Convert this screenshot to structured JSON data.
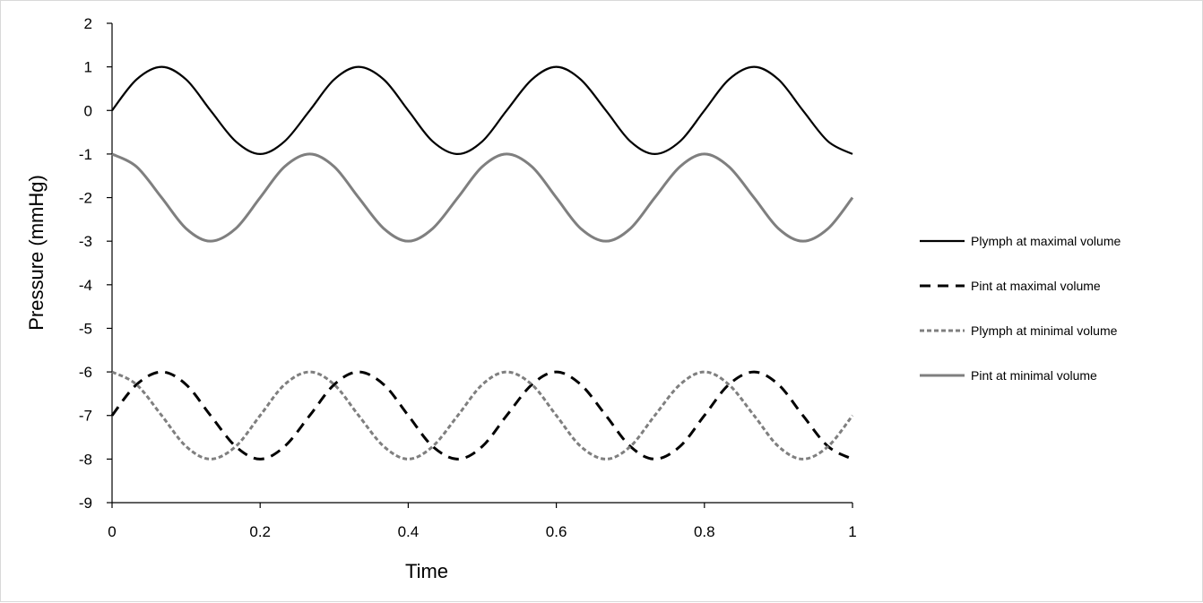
{
  "chart_data": {
    "type": "line",
    "title": "",
    "xlabel": "Time",
    "ylabel": "Pressure (mmHg)",
    "xlim": [
      0,
      1
    ],
    "ylim": [
      -9,
      2
    ],
    "xticks": [
      "0",
      "0.2",
      "0.4",
      "0.6",
      "0.8",
      "1"
    ],
    "yticks": [
      "2",
      "1",
      "0",
      "-1",
      "-2",
      "-3",
      "-4",
      "-5",
      "-6",
      "-7",
      "-8",
      "-9"
    ],
    "grid": false,
    "legend_position": "right",
    "series": [
      {
        "name": "Plymph at maximal volume",
        "color": "#000000",
        "line_style": "solid",
        "x": [
          0,
          0.033,
          0.067,
          0.1,
          0.133,
          0.167,
          0.2,
          0.233,
          0.267,
          0.3,
          0.333,
          0.367,
          0.4,
          0.433,
          0.467,
          0.5,
          0.533,
          0.567,
          0.6,
          0.633,
          0.667,
          0.7,
          0.733,
          0.767,
          0.8,
          0.833,
          0.867,
          0.9,
          0.933,
          0.967,
          1
        ],
        "values": [
          0,
          0.71,
          1,
          0.71,
          0,
          -0.71,
          -1,
          -0.71,
          0,
          0.71,
          1,
          0.71,
          0,
          -0.71,
          -1,
          -0.71,
          0,
          0.71,
          1,
          0.71,
          0,
          -0.71,
          -1,
          -0.71,
          0,
          0.71,
          1,
          0.71,
          0,
          -0.71,
          -1
        ]
      },
      {
        "name": "Pint at maximal volume",
        "color": "#000000",
        "line_style": "dashed",
        "x": [
          0,
          0.033,
          0.067,
          0.1,
          0.133,
          0.167,
          0.2,
          0.233,
          0.267,
          0.3,
          0.333,
          0.367,
          0.4,
          0.433,
          0.467,
          0.5,
          0.533,
          0.567,
          0.6,
          0.633,
          0.667,
          0.7,
          0.733,
          0.767,
          0.8,
          0.833,
          0.867,
          0.9,
          0.933,
          0.967,
          1
        ],
        "values": [
          -7,
          -6.29,
          -6,
          -6.29,
          -7,
          -7.71,
          -8,
          -7.71,
          -7,
          -6.29,
          -6,
          -6.29,
          -7,
          -7.71,
          -8,
          -7.71,
          -7,
          -6.29,
          -6,
          -6.29,
          -7,
          -7.71,
          -8,
          -7.71,
          -7,
          -6.29,
          -6,
          -6.29,
          -7,
          -7.71,
          -8
        ]
      },
      {
        "name": "Plymph at minimal volume",
        "color": "#7f7f7f",
        "line_style": "dotted",
        "x": [
          0,
          0.033,
          0.067,
          0.1,
          0.133,
          0.167,
          0.2,
          0.233,
          0.267,
          0.3,
          0.333,
          0.367,
          0.4,
          0.433,
          0.467,
          0.5,
          0.533,
          0.567,
          0.6,
          0.633,
          0.667,
          0.7,
          0.733,
          0.767,
          0.8,
          0.833,
          0.867,
          0.9,
          0.933,
          0.967,
          1
        ],
        "values": [
          -6,
          -6.29,
          -7,
          -7.71,
          -8,
          -7.71,
          -7,
          -6.29,
          -6,
          -6.29,
          -7,
          -7.71,
          -8,
          -7.71,
          -7,
          -6.29,
          -6,
          -6.29,
          -7,
          -7.71,
          -8,
          -7.71,
          -7,
          -6.29,
          -6,
          -6.29,
          -7,
          -7.71,
          -8,
          -7.71,
          -7
        ]
      },
      {
        "name": "Pint at minimal volume",
        "color": "#7f7f7f",
        "line_style": "solid",
        "x": [
          0,
          0.033,
          0.067,
          0.1,
          0.133,
          0.167,
          0.2,
          0.233,
          0.267,
          0.3,
          0.333,
          0.367,
          0.4,
          0.433,
          0.467,
          0.5,
          0.533,
          0.567,
          0.6,
          0.633,
          0.667,
          0.7,
          0.733,
          0.767,
          0.8,
          0.833,
          0.867,
          0.9,
          0.933,
          0.967,
          1
        ],
        "values": [
          -1,
          -1.29,
          -2,
          -2.71,
          -3,
          -2.71,
          -2,
          -1.29,
          -1,
          -1.29,
          -2,
          -2.71,
          -3,
          -2.71,
          -2,
          -1.29,
          -1,
          -1.29,
          -2,
          -2.71,
          -3,
          -2.71,
          -2,
          -1.29,
          -1,
          -1.29,
          -2,
          -2.71,
          -3,
          -2.71,
          -2
        ]
      }
    ]
  }
}
